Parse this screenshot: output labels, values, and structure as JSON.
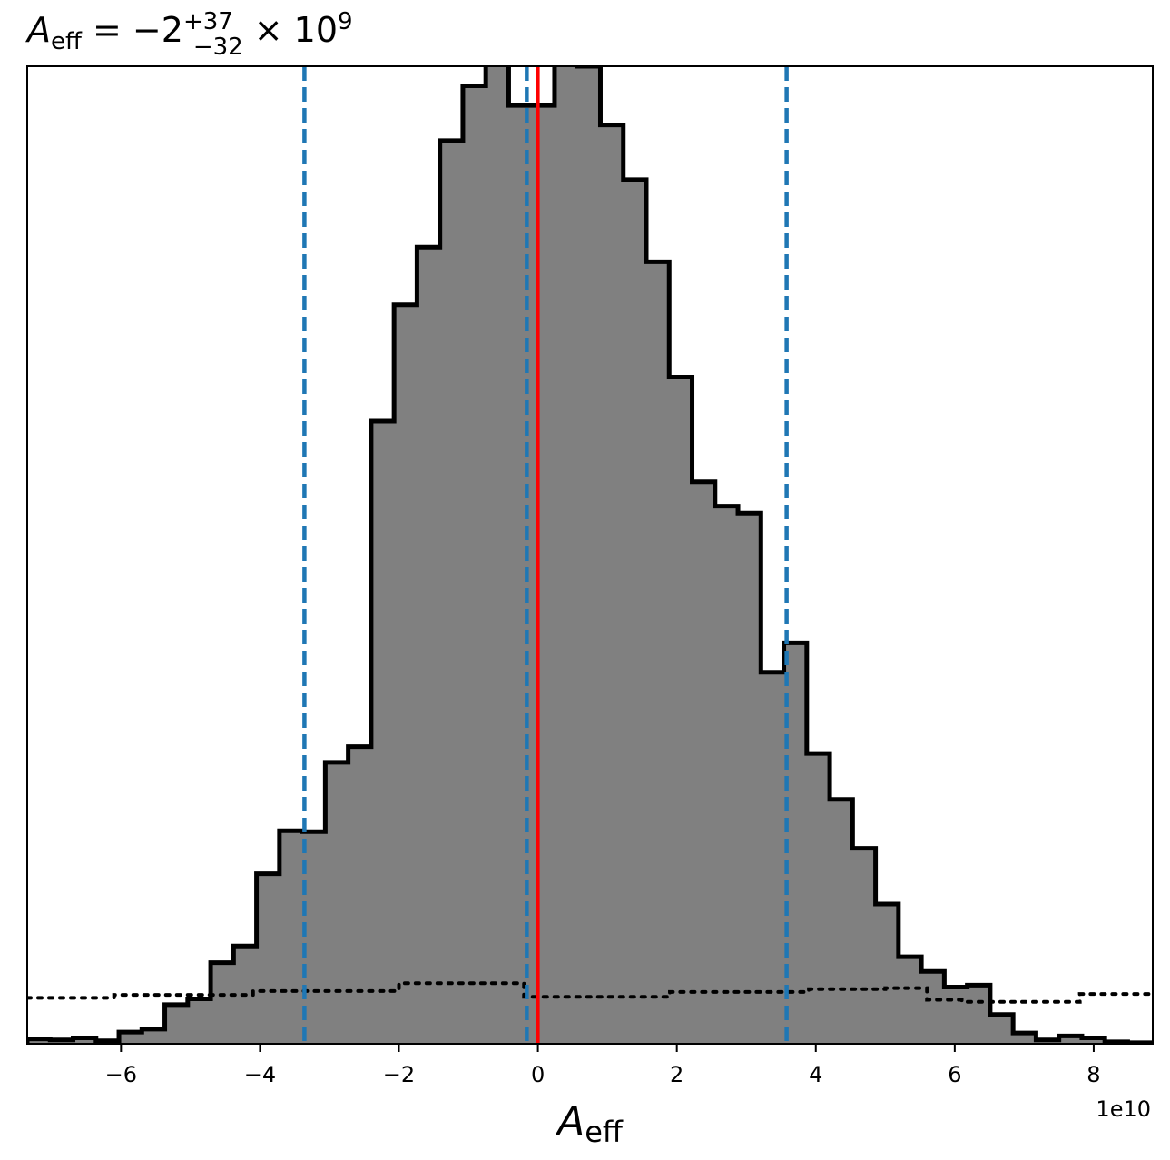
{
  "chart_data": {
    "type": "histogram",
    "title": {
      "symbol": "A",
      "symbol_sub": "eff",
      "equals": " = −2",
      "sup": "+37",
      "sub": "−32",
      "times": " × 10",
      "exp": "9"
    },
    "xlabel": {
      "symbol": "A",
      "sub": "eff"
    },
    "x_multiplier": "1e10",
    "xlim": [
      -7.35,
      8.85
    ],
    "ylim": [
      0,
      1.0
    ],
    "xticks": [
      -6,
      -4,
      -2,
      0,
      2,
      4,
      6,
      8
    ],
    "xtick_labels": [
      "−6",
      "−4",
      "−2",
      "0",
      "2",
      "4",
      "6",
      "8"
    ],
    "bins": {
      "x0": -7.35,
      "width": 0.33,
      "heights": [
        0.005,
        0.004,
        0.006,
        0.003,
        0.012,
        0.015,
        0.04,
        0.046,
        0.083,
        0.1,
        0.174,
        0.218,
        0.217,
        0.288,
        0.304,
        0.637,
        0.756,
        0.815,
        0.924,
        0.98,
        1.02,
        0.96,
        0.96,
        1.05,
        1.0,
        0.94,
        0.884,
        0.8,
        0.682,
        0.575,
        0.55,
        0.543,
        0.38,
        0.41,
        0.297,
        0.25,
        0.2,
        0.143,
        0.089,
        0.074,
        0.058,
        0.06,
        0.03,
        0.011,
        0.004,
        0.008,
        0.006,
        0.002,
        0.001
      ]
    },
    "prior": {
      "style": "dotted",
      "x": [
        -7.35,
        -6.1,
        -6.1,
        -4.1,
        -4.1,
        -2.0,
        -2.0,
        -0.2,
        -0.2,
        1.9,
        1.9,
        3.9,
        3.9,
        5.0,
        5.0,
        5.6,
        5.6,
        6.1,
        6.1,
        7.8,
        7.8,
        8.85
      ],
      "y": [
        0.047,
        0.047,
        0.05,
        0.05,
        0.054,
        0.054,
        0.062,
        0.062,
        0.048,
        0.048,
        0.053,
        0.053,
        0.056,
        0.056,
        0.057,
        0.057,
        0.045,
        0.045,
        0.043,
        0.043,
        0.051,
        0.051
      ]
    },
    "vlines": [
      {
        "x": -3.36,
        "color": "#1f77b4",
        "style": "dashed"
      },
      {
        "x": -0.16,
        "color": "#1f77b4",
        "style": "dashed"
      },
      {
        "x": 3.58,
        "color": "#1f77b4",
        "style": "dashed"
      },
      {
        "x": 0.0,
        "color": "#ff0000",
        "style": "solid"
      }
    ],
    "colors": {
      "fill": "#808080",
      "edge": "#000000"
    }
  }
}
